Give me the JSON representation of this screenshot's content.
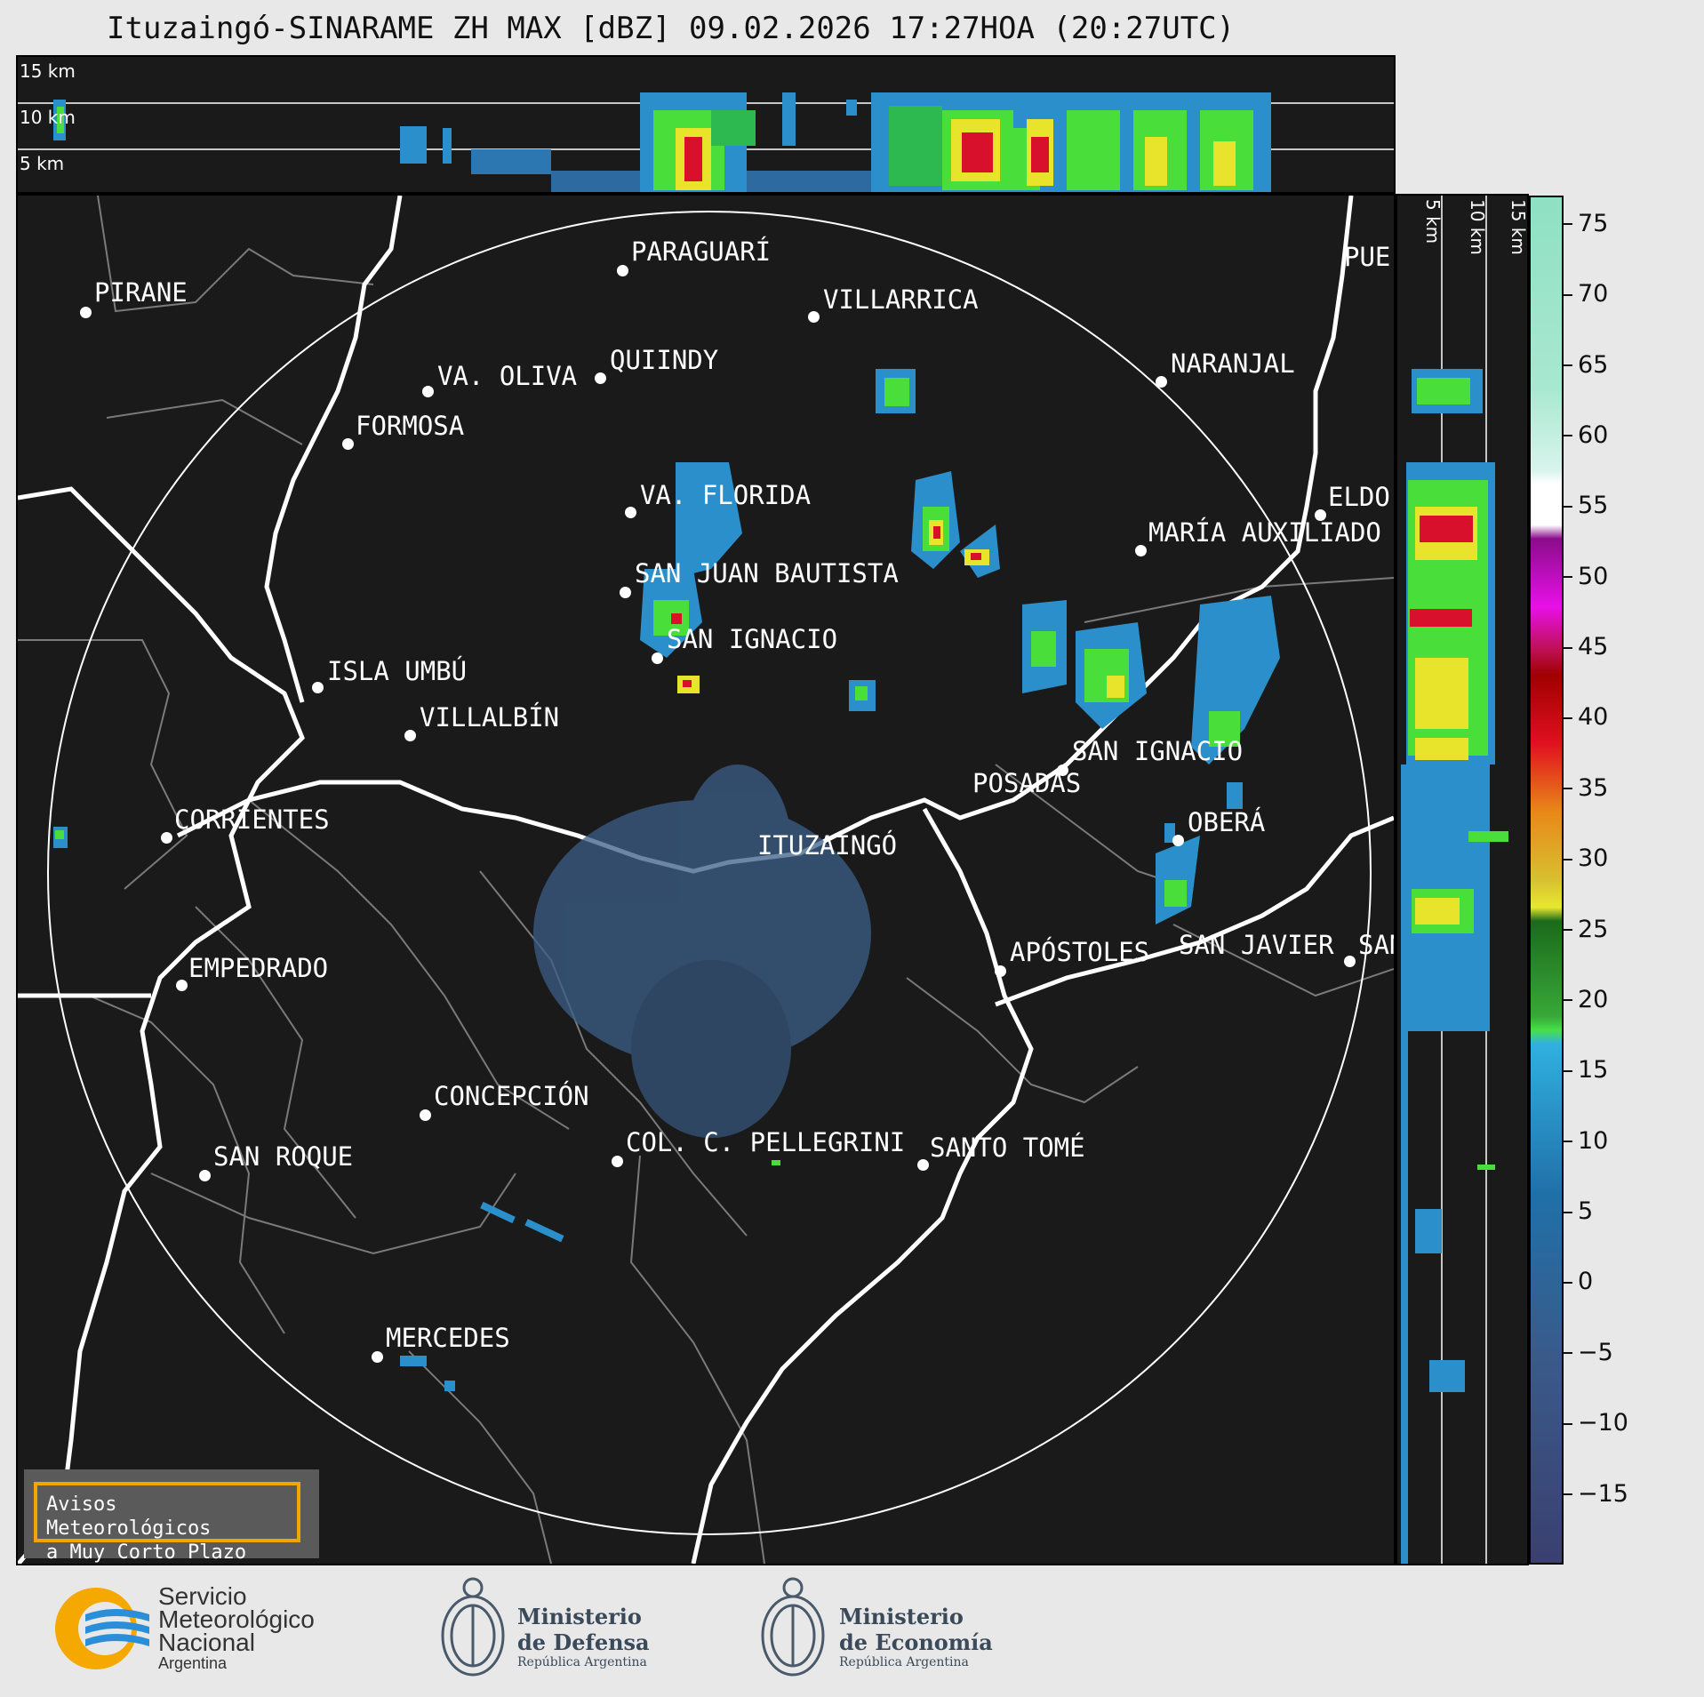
{
  "title": "Ituzaingó-SINARAME ZH MAX [dBZ] 09.02.2026 17:27HOA (20:27UTC)",
  "top_panel": {
    "altitude_labels": [
      "15 km",
      "10 km",
      "5 km"
    ]
  },
  "side_panel": {
    "altitude_labels": [
      "5 km",
      "10 km",
      "15 km"
    ]
  },
  "colorbar": {
    "unit": "dBZ",
    "ticks": [
      "75",
      "70",
      "65",
      "60",
      "55",
      "50",
      "45",
      "40",
      "35",
      "30",
      "25",
      "20",
      "15",
      "10",
      "5",
      "0",
      "−5",
      "−10",
      "−15"
    ],
    "range": [
      -20,
      77
    ]
  },
  "cities": [
    {
      "name": "PIRANE"
    },
    {
      "name": "PARAGUARÍ"
    },
    {
      "name": "VILLARRICA"
    },
    {
      "name": "QUIINDY"
    },
    {
      "name": "VA. OLIVA"
    },
    {
      "name": "FORMOSA"
    },
    {
      "name": "NARANJAL"
    },
    {
      "name": "PUE"
    },
    {
      "name": "ELDO"
    },
    {
      "name": "MARÍA AUXILIADO"
    },
    {
      "name": "VA. FLORIDA"
    },
    {
      "name": "SAN JUAN BAUTISTA"
    },
    {
      "name": "SAN IGNACIO"
    },
    {
      "name": "ISLA UMBÚ"
    },
    {
      "name": "VILLALBÍN"
    },
    {
      "name": "SAN IGNACIO"
    },
    {
      "name": "POSADAS"
    },
    {
      "name": "CORRIENTES"
    },
    {
      "name": "ITUZAINGÓ"
    },
    {
      "name": "OBERÁ"
    },
    {
      "name": "APÓSTOLES"
    },
    {
      "name": "SAN JAVIER"
    },
    {
      "name": "SAN"
    },
    {
      "name": "EMPEDRADO"
    },
    {
      "name": "CONCEPCIÓN"
    },
    {
      "name": "COL. C. PELLEGRINI"
    },
    {
      "name": "SANTO TOMÉ"
    },
    {
      "name": "SAN ROQUE"
    },
    {
      "name": "MERCEDES"
    }
  ],
  "notice": {
    "line1": "Avisos Meteorológicos",
    "line2": "a Muy Corto Plazo"
  },
  "logos": {
    "smn": {
      "line1": "Servicio",
      "line2": "Meteorológico",
      "line3": "Nacional",
      "line4": "Argentina"
    },
    "defensa": {
      "line1": "Ministerio",
      "line2": "de Defensa",
      "line3": "República Argentina"
    },
    "economia": {
      "line1": "Ministerio",
      "line2": "de Economía",
      "line3": "República Argentina"
    }
  },
  "colors": {
    "background": "#1a1a1a",
    "page": "#e8e8e8",
    "accent": "#f0a500"
  }
}
